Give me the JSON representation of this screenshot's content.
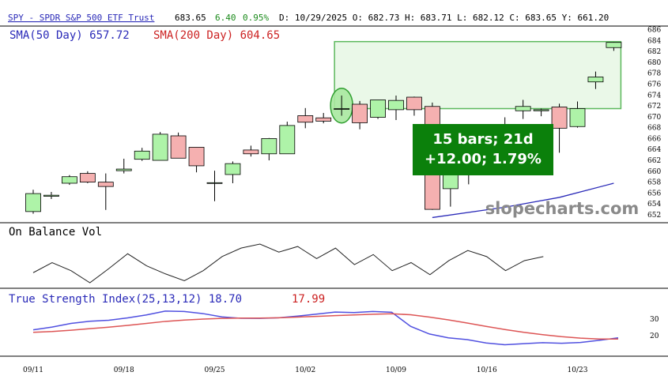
{
  "header": {
    "symbol_link": "SPY - SPDR S&P 500 ETF Trust",
    "last": "683.65",
    "change": "6.40",
    "change_pct": "0.95%",
    "quote": "D: 10/29/2025 O: 682.73 H: 683.71 L: 682.12 C: 683.65 Y: 661.20"
  },
  "legend": {
    "sma50_label": "SMA(50 Day) 657.72",
    "sma200_label": "SMA(200 Day) 604.65"
  },
  "obv_panel": {
    "title": "On Balance Vol"
  },
  "tsi_panel": {
    "title": "True Strength Index(25,13,12) 18.70",
    "signal_value": "17.99"
  },
  "watermark": "slopecharts.com",
  "annotation": {
    "line1": "15 bars; 21d",
    "line2": "+12.00; 1.79%"
  },
  "colors": {
    "up": "#aef3a8",
    "down": "#f5b0b0",
    "sma50": "#2a2ab8",
    "tsi": "#5050e0",
    "tsi_signal": "#dd5555",
    "measure_fill": "#e6f7e4",
    "measure_stroke": "#5cb85c",
    "annotation_bg": "#0b800b"
  },
  "chart_data": [
    {
      "type": "candlestick",
      "title": "SPY - SPDR S&P 500 ETF Trust",
      "ylim": [
        651,
        687
      ],
      "yticks": [
        652,
        654,
        656,
        658,
        660,
        662,
        664,
        666,
        668,
        670,
        672,
        674,
        676,
        678,
        680,
        682,
        684,
        686
      ],
      "xtick_labels": [
        "09/11",
        "09/18",
        "09/25",
        "10/02",
        "10/09",
        "10/16",
        "10/23"
      ],
      "xtick_index": [
        0,
        5,
        10,
        15,
        20,
        25,
        30
      ],
      "candles": [
        {
          "o": 652.6,
          "h": 656.6,
          "l": 652.2,
          "c": 655.9
        },
        {
          "o": 655.4,
          "h": 656.2,
          "l": 654.9,
          "c": 655.6
        },
        {
          "o": 657.8,
          "h": 659.3,
          "l": 657.5,
          "c": 659.0
        },
        {
          "o": 659.6,
          "h": 660.0,
          "l": 657.8,
          "c": 658.0
        },
        {
          "o": 658.0,
          "h": 659.6,
          "l": 652.9,
          "c": 657.2
        },
        {
          "o": 660.1,
          "h": 662.3,
          "l": 659.6,
          "c": 660.4
        },
        {
          "o": 662.2,
          "h": 664.3,
          "l": 661.9,
          "c": 663.7
        },
        {
          "o": 662.0,
          "h": 667.2,
          "l": 662.0,
          "c": 666.8
        },
        {
          "o": 666.5,
          "h": 667.1,
          "l": 662.4,
          "c": 662.4
        },
        {
          "o": 664.4,
          "h": 664.4,
          "l": 659.8,
          "c": 661.0
        },
        {
          "o": 657.9,
          "h": 660.1,
          "l": 654.5,
          "c": 657.9
        },
        {
          "o": 659.4,
          "h": 661.8,
          "l": 657.8,
          "c": 661.4
        },
        {
          "o": 663.9,
          "h": 664.7,
          "l": 662.7,
          "c": 663.2
        },
        {
          "o": 663.2,
          "h": 666.1,
          "l": 662.0,
          "c": 666.0
        },
        {
          "o": 663.2,
          "h": 669.1,
          "l": 663.2,
          "c": 668.4
        },
        {
          "o": 670.2,
          "h": 671.6,
          "l": 667.9,
          "c": 669.0
        },
        {
          "o": 669.8,
          "h": 670.7,
          "l": 668.8,
          "c": 669.2
        },
        {
          "o": 671.5,
          "h": 673.9,
          "l": 670.2,
          "c": 671.5
        },
        {
          "o": 672.3,
          "h": 672.9,
          "l": 667.7,
          "c": 668.9
        },
        {
          "o": 669.9,
          "h": 673.1,
          "l": 669.6,
          "c": 673.1
        },
        {
          "o": 671.3,
          "h": 673.9,
          "l": 669.4,
          "c": 673.0
        },
        {
          "o": 673.6,
          "h": 673.7,
          "l": 670.2,
          "c": 671.3
        },
        {
          "o": 671.9,
          "h": 672.6,
          "l": 652.9,
          "c": 653.0
        },
        {
          "o": 656.8,
          "h": 665.7,
          "l": 653.5,
          "c": 665.7
        },
        {
          "o": 662.9,
          "h": 663.1,
          "l": 657.6,
          "c": 662.9
        },
        {
          "o": 663.6,
          "h": 665.9,
          "l": 660.7,
          "c": 664.9
        },
        {
          "o": 665.7,
          "h": 669.9,
          "l": 663.6,
          "c": 666.5
        },
        {
          "o": 671.1,
          "h": 673.1,
          "l": 669.6,
          "c": 671.9
        },
        {
          "o": 671.1,
          "h": 671.5,
          "l": 670.1,
          "c": 671.3
        },
        {
          "o": 671.8,
          "h": 672.4,
          "l": 663.4,
          "c": 667.9
        },
        {
          "o": 668.2,
          "h": 672.8,
          "l": 668.0,
          "c": 671.5
        },
        {
          "o": 676.4,
          "h": 678.3,
          "l": 675.1,
          "c": 677.3
        },
        {
          "o": 682.7,
          "h": 683.7,
          "l": 682.1,
          "c": 683.65
        }
      ],
      "sma50": {
        "name": "SMA(50 Day)",
        "points": [
          [
            22,
            651.5
          ],
          [
            26,
            653.4
          ],
          [
            29,
            655.2
          ],
          [
            32,
            657.8
          ]
        ]
      },
      "measure_range": {
        "from_index": 17,
        "to_index": 32,
        "low": 671.5,
        "high": 683.8
      },
      "highlight_index": 17
    },
    {
      "type": "line",
      "title": "On Balance Vol",
      "values": [
        0.25,
        0.5,
        0.3,
        0.0,
        0.35,
        0.72,
        0.42,
        0.22,
        0.05,
        0.3,
        0.65,
        0.86,
        0.96,
        0.76,
        0.9,
        0.6,
        0.86,
        0.45,
        0.7,
        0.3,
        0.5,
        0.2,
        0.55,
        0.8,
        0.65,
        0.3,
        0.55,
        0.65
      ]
    },
    {
      "type": "line",
      "title": "True Strength Index(25,13,12)",
      "ylim": [
        10,
        37
      ],
      "yticks": [
        20,
        30
      ],
      "series": [
        {
          "name": "TSI",
          "values": [
            23.5,
            25.2,
            27.4,
            28.7,
            29.3,
            30.7,
            32.5,
            34.8,
            34.6,
            33.3,
            31.3,
            30.5,
            30.4,
            30.8,
            31.8,
            33.0,
            34.2,
            33.9,
            34.6,
            34.1,
            25.6,
            21.0,
            18.7,
            17.6,
            15.6,
            14.5,
            15.2,
            15.8,
            15.4,
            15.9,
            17.2,
            18.7
          ]
        },
        {
          "name": "Signal",
          "values": [
            22.0,
            22.5,
            23.3,
            24.2,
            25.1,
            26.2,
            27.4,
            28.6,
            29.4,
            30.0,
            30.4,
            30.6,
            30.6,
            30.8,
            31.2,
            31.6,
            32.1,
            32.5,
            32.9,
            33.2,
            32.6,
            31.2,
            29.5,
            27.6,
            25.6,
            23.7,
            22.0,
            20.6,
            19.4,
            18.5,
            18.0,
            17.99
          ]
        }
      ]
    }
  ]
}
